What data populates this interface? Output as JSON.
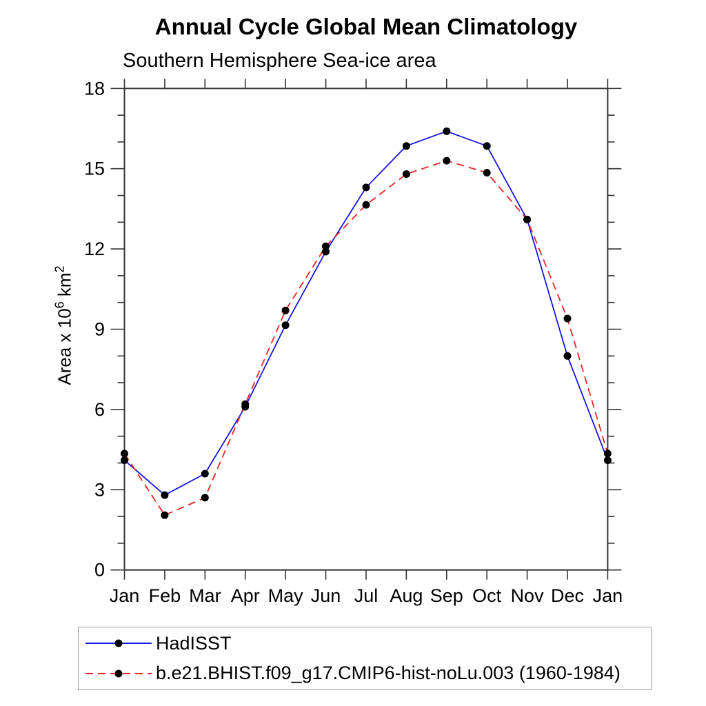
{
  "header": {
    "title": "Annual Cycle Global Mean Climatology",
    "subtitle": "Southern Hemisphere Sea-ice area"
  },
  "chart_data": {
    "type": "line",
    "title": "Annual Cycle Global Mean Climatology",
    "subtitle": "Southern Hemisphere Sea-ice area",
    "xlabel": "",
    "ylabel": "Area x 10⁶ km²",
    "ylabel_parts": {
      "base1": "Area x 10",
      "sup1": "6",
      "base2": " km",
      "sup2": "2"
    },
    "categories": [
      "Jan",
      "Feb",
      "Mar",
      "Apr",
      "May",
      "Jun",
      "Jul",
      "Aug",
      "Sep",
      "Oct",
      "Nov",
      "Dec",
      "Jan"
    ],
    "series": [
      {
        "name": "HadISST",
        "color": "#1515e6",
        "line_style": "solid",
        "marker": "black-dot",
        "values": [
          4.1,
          2.8,
          3.6,
          6.1,
          9.15,
          11.9,
          14.3,
          15.85,
          16.4,
          15.85,
          13.1,
          8.0,
          4.1
        ]
      },
      {
        "name": "b.e21.BHIST.f09_g17.CMIP6-hist-noLu.003 (1960-1984)",
        "color": "#ee2222",
        "line_style": "dashed",
        "marker": "black-dot",
        "values": [
          4.35,
          2.05,
          2.7,
          6.2,
          9.7,
          12.1,
          13.65,
          14.8,
          15.3,
          14.85,
          13.1,
          9.4,
          4.35
        ]
      }
    ],
    "ylim": [
      0,
      18
    ],
    "ytick_major": [
      0,
      3,
      6,
      9,
      12,
      15,
      18
    ],
    "ytick_minor_step": 1,
    "grid": false,
    "legend_position": "bottom-left-box",
    "marker_color": "#000000",
    "axis_color": "#333333",
    "text_color": "#000000"
  }
}
